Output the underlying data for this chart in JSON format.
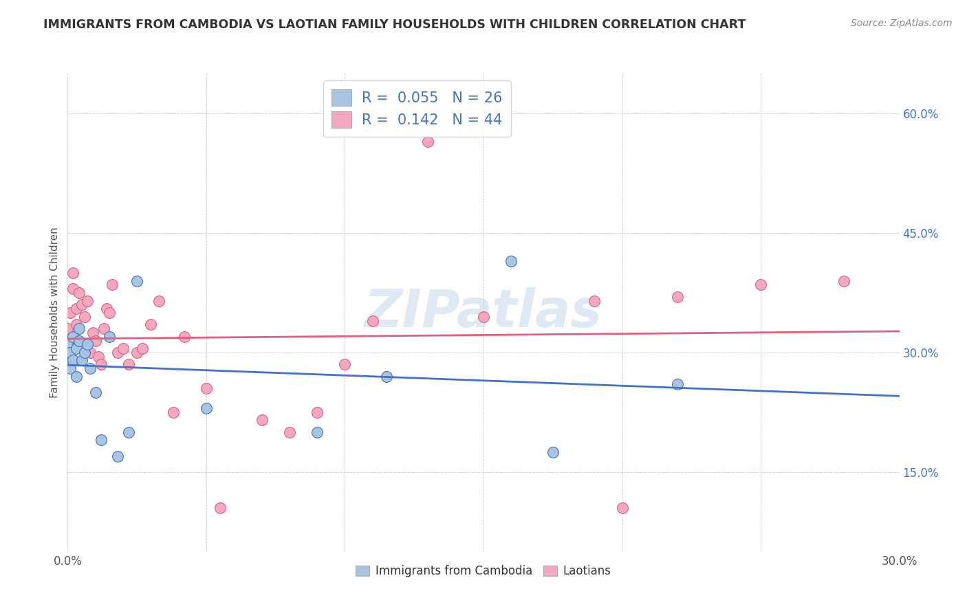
{
  "title": "IMMIGRANTS FROM CAMBODIA VS LAOTIAN FAMILY HOUSEHOLDS WITH CHILDREN CORRELATION CHART",
  "source": "Source: ZipAtlas.com",
  "ylabel": "Family Households with Children",
  "xlim": [
    0.0,
    0.3
  ],
  "ylim": [
    0.05,
    0.65
  ],
  "xticks": [
    0.0,
    0.05,
    0.1,
    0.15,
    0.2,
    0.25,
    0.3
  ],
  "xticklabels": [
    "0.0%",
    "",
    "",
    "",
    "",
    "",
    "30.0%"
  ],
  "yticks": [
    0.15,
    0.3,
    0.45,
    0.6
  ],
  "yticklabels": [
    "15.0%",
    "30.0%",
    "45.0%",
    "60.0%"
  ],
  "legend_r1": "R =  0.055",
  "legend_n1": "N = 26",
  "legend_r2": "R =  0.142",
  "legend_n2": "N = 44",
  "color_blue": "#a8c4e0",
  "color_pink": "#f4a8c0",
  "line_color_blue": "#4472c4",
  "line_color_pink": "#e06080",
  "watermark": "ZIPatlas",
  "title_fontsize": 13,
  "cambodia_x": [
    0.0,
    0.0,
    0.001,
    0.001,
    0.002,
    0.002,
    0.003,
    0.003,
    0.004,
    0.004,
    0.005,
    0.006,
    0.007,
    0.008,
    0.01,
    0.012,
    0.015,
    0.018,
    0.022,
    0.025,
    0.05,
    0.09,
    0.115,
    0.16,
    0.175,
    0.22
  ],
  "cambodia_y": [
    0.295,
    0.31,
    0.3,
    0.28,
    0.32,
    0.29,
    0.305,
    0.27,
    0.315,
    0.33,
    0.29,
    0.3,
    0.31,
    0.28,
    0.25,
    0.19,
    0.32,
    0.17,
    0.2,
    0.39,
    0.23,
    0.2,
    0.27,
    0.415,
    0.175,
    0.26
  ],
  "laotian_x": [
    0.0,
    0.0,
    0.001,
    0.001,
    0.002,
    0.002,
    0.003,
    0.003,
    0.004,
    0.005,
    0.006,
    0.007,
    0.008,
    0.009,
    0.01,
    0.011,
    0.012,
    0.013,
    0.014,
    0.015,
    0.016,
    0.018,
    0.02,
    0.022,
    0.025,
    0.027,
    0.03,
    0.033,
    0.038,
    0.042,
    0.05,
    0.055,
    0.07,
    0.08,
    0.09,
    0.1,
    0.11,
    0.13,
    0.15,
    0.19,
    0.2,
    0.22,
    0.25,
    0.28
  ],
  "laotian_y": [
    0.295,
    0.33,
    0.31,
    0.35,
    0.38,
    0.4,
    0.355,
    0.335,
    0.375,
    0.36,
    0.345,
    0.365,
    0.3,
    0.325,
    0.315,
    0.295,
    0.285,
    0.33,
    0.355,
    0.35,
    0.385,
    0.3,
    0.305,
    0.285,
    0.3,
    0.305,
    0.335,
    0.365,
    0.225,
    0.32,
    0.255,
    0.105,
    0.215,
    0.2,
    0.225,
    0.285,
    0.34,
    0.565,
    0.345,
    0.365,
    0.105,
    0.37,
    0.385,
    0.39
  ]
}
